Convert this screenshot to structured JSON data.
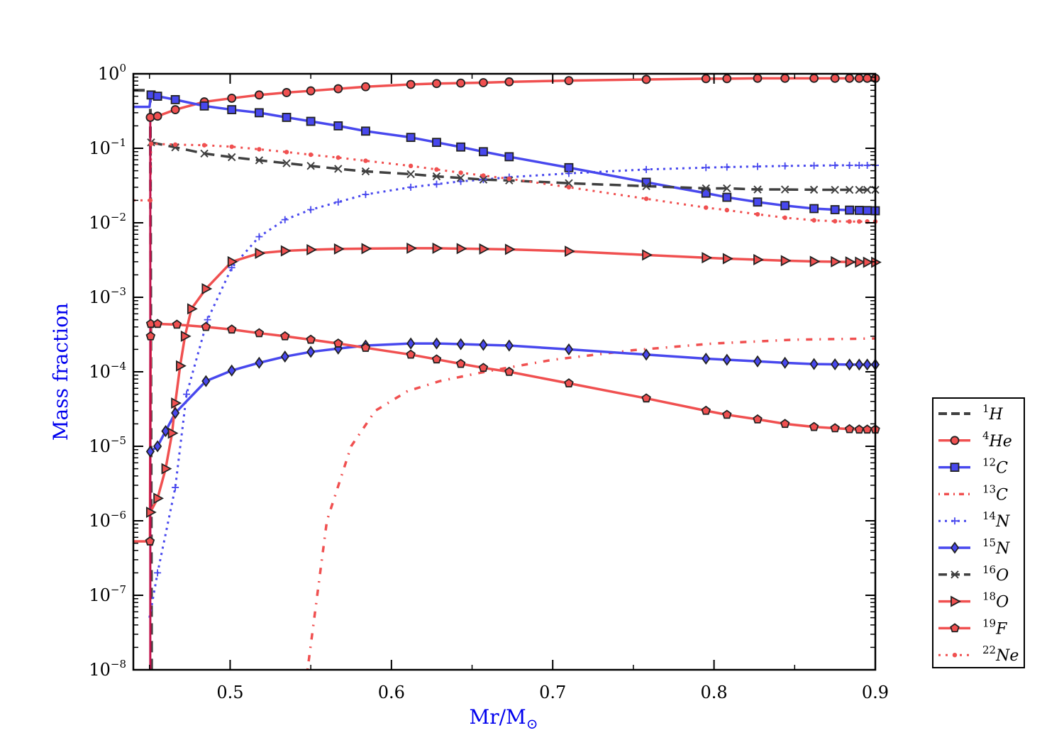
{
  "chart_data": {
    "type": "line",
    "xlabel": "Mr/M",
    "xlabel_sub": "⊙",
    "ylabel": "Mass fraction",
    "xlim": [
      0.44,
      0.9
    ],
    "ylim": [
      1e-08,
      1
    ],
    "yscale": "log",
    "grid": false,
    "legend_position": "right",
    "x_ticks": [
      {
        "v": 0.5,
        "label": "0.5"
      },
      {
        "v": 0.6,
        "label": "0.6"
      },
      {
        "v": 0.7,
        "label": "0.7"
      },
      {
        "v": 0.8,
        "label": "0.8"
      },
      {
        "v": 0.9,
        "label": "0.9"
      }
    ],
    "y_ticks": [
      {
        "exp": 0,
        "base": "10",
        "sup": "0"
      },
      {
        "exp": -1,
        "base": "10",
        "sup": "−1"
      },
      {
        "exp": -2,
        "base": "10",
        "sup": "−2"
      },
      {
        "exp": -3,
        "base": "10",
        "sup": "−3"
      },
      {
        "exp": -4,
        "base": "10",
        "sup": "−4"
      },
      {
        "exp": -5,
        "base": "10",
        "sup": "−5"
      },
      {
        "exp": -6,
        "base": "10",
        "sup": "−6"
      },
      {
        "exp": -7,
        "base": "10",
        "sup": "−7"
      },
      {
        "exp": -8,
        "base": "10",
        "sup": "−8"
      }
    ],
    "series": [
      {
        "id": "h1",
        "mass": "1",
        "elem": "H",
        "color": "#404040",
        "dash": "16,9",
        "width": 4,
        "marker": "none",
        "x": [
          0.44,
          0.449,
          0.4505,
          0.451,
          0.4513
        ],
        "y": [
          0.6,
          0.6,
          0.6,
          1e-05,
          1e-08
        ]
      },
      {
        "id": "he4",
        "mass": "4",
        "elem": "He",
        "color": "#f05050",
        "dash": "",
        "width": 3.5,
        "marker": "circle",
        "x": [
          0.4505,
          0.455,
          0.466,
          0.484,
          0.501,
          0.518,
          0.535,
          0.55,
          0.567,
          0.584,
          0.612,
          0.628,
          0.643,
          0.657,
          0.673,
          0.71,
          0.758,
          0.795,
          0.808,
          0.827,
          0.844,
          0.862,
          0.875,
          0.884,
          0.89,
          0.895,
          0.9
        ],
        "y": [
          0.26,
          0.27,
          0.33,
          0.42,
          0.47,
          0.52,
          0.56,
          0.59,
          0.63,
          0.67,
          0.72,
          0.74,
          0.75,
          0.76,
          0.78,
          0.81,
          0.84,
          0.86,
          0.86,
          0.87,
          0.87,
          0.87,
          0.87,
          0.87,
          0.87,
          0.87,
          0.87
        ]
      },
      {
        "id": "c12",
        "mass": "12",
        "elem": "C",
        "color": "#4848ee",
        "dash": "",
        "width": 3.5,
        "marker": "square",
        "x": [
          0.44,
          0.447,
          0.45,
          0.451,
          0.455,
          0.466,
          0.484,
          0.501,
          0.518,
          0.535,
          0.55,
          0.567,
          0.584,
          0.612,
          0.628,
          0.643,
          0.657,
          0.673,
          0.71,
          0.758,
          0.795,
          0.808,
          0.827,
          0.844,
          0.862,
          0.875,
          0.884,
          0.89,
          0.895,
          0.9
        ],
        "y": [
          0.36,
          0.36,
          0.36,
          0.52,
          0.5,
          0.45,
          0.37,
          0.33,
          0.3,
          0.26,
          0.23,
          0.2,
          0.17,
          0.14,
          0.12,
          0.104,
          0.09,
          0.077,
          0.055,
          0.035,
          0.025,
          0.022,
          0.019,
          0.017,
          0.0155,
          0.015,
          0.0148,
          0.0147,
          0.0146,
          0.0145
        ]
      },
      {
        "id": "c13",
        "mass": "13",
        "elem": "C",
        "color": "#f05050",
        "dash": "2,10,9,10",
        "width": 3.5,
        "marker": "none",
        "x": [
          0.548,
          0.56,
          0.575,
          0.59,
          0.61,
          0.63,
          0.66,
          0.7,
          0.75,
          0.8,
          0.85,
          0.9
        ],
        "y": [
          1e-08,
          1e-06,
          1e-05,
          3e-05,
          5.5e-05,
          7.5e-05,
          0.000102,
          0.000145,
          0.000195,
          0.00024,
          0.00027,
          0.00028
        ]
      },
      {
        "id": "n14",
        "mass": "14",
        "elem": "N",
        "color": "#4848ee",
        "dash": "3,6",
        "width": 3,
        "marker": "plus",
        "x": [
          0.45,
          0.455,
          0.466,
          0.473,
          0.486,
          0.501,
          0.518,
          0.534,
          0.55,
          0.567,
          0.584,
          0.612,
          0.628,
          0.643,
          0.657,
          0.673,
          0.71,
          0.758,
          0.795,
          0.808,
          0.827,
          0.844,
          0.862,
          0.875,
          0.884,
          0.89,
          0.895,
          0.9
        ],
        "y": [
          5e-08,
          2e-07,
          2.8e-06,
          5e-05,
          0.0005,
          0.0025,
          0.0065,
          0.011,
          0.015,
          0.019,
          0.024,
          0.03,
          0.033,
          0.036,
          0.038,
          0.041,
          0.046,
          0.052,
          0.055,
          0.056,
          0.057,
          0.058,
          0.0585,
          0.059,
          0.059,
          0.059,
          0.059,
          0.059
        ]
      },
      {
        "id": "n15",
        "mass": "15",
        "elem": "N",
        "color": "#4848ee",
        "dash": "",
        "width": 3.5,
        "marker": "diamond",
        "x": [
          0.4505,
          0.455,
          0.46,
          0.466,
          0.485,
          0.501,
          0.518,
          0.534,
          0.55,
          0.567,
          0.584,
          0.612,
          0.628,
          0.643,
          0.657,
          0.673,
          0.71,
          0.758,
          0.795,
          0.808,
          0.827,
          0.844,
          0.862,
          0.875,
          0.884,
          0.89,
          0.895,
          0.9
        ],
        "y": [
          8.5e-06,
          1e-05,
          1.6e-05,
          2.8e-05,
          7.5e-05,
          0.000104,
          0.000132,
          0.00016,
          0.000185,
          0.000205,
          0.000225,
          0.00024,
          0.00024,
          0.000235,
          0.00023,
          0.000225,
          0.0002,
          0.00017,
          0.00015,
          0.000145,
          0.000138,
          0.000132,
          0.000127,
          0.000126,
          0.000125,
          0.000125,
          0.000125,
          0.000125
        ]
      },
      {
        "id": "o16",
        "mass": "16",
        "elem": "O",
        "color": "#404040",
        "dash": "16,9",
        "width": 3.5,
        "marker": "x",
        "x": [
          0.451,
          0.466,
          0.484,
          0.501,
          0.518,
          0.535,
          0.55,
          0.567,
          0.584,
          0.612,
          0.628,
          0.643,
          0.657,
          0.673,
          0.71,
          0.758,
          0.795,
          0.808,
          0.827,
          0.844,
          0.862,
          0.875,
          0.884,
          0.89,
          0.895,
          0.9
        ],
        "y": [
          0.12,
          0.103,
          0.085,
          0.076,
          0.069,
          0.063,
          0.058,
          0.053,
          0.049,
          0.045,
          0.042,
          0.04,
          0.038,
          0.037,
          0.034,
          0.031,
          0.029,
          0.029,
          0.028,
          0.028,
          0.0278,
          0.0277,
          0.0277,
          0.0277,
          0.0277,
          0.0277
        ]
      },
      {
        "id": "o18",
        "mass": "18",
        "elem": "O",
        "color": "#f05050",
        "dash": "",
        "width": 3.5,
        "marker": "triangle",
        "x": [
          0.4505,
          0.455,
          0.46,
          0.464,
          0.466,
          0.469,
          0.472,
          0.476,
          0.485,
          0.501,
          0.518,
          0.534,
          0.55,
          0.567,
          0.584,
          0.612,
          0.628,
          0.643,
          0.657,
          0.673,
          0.71,
          0.758,
          0.795,
          0.808,
          0.827,
          0.844,
          0.862,
          0.875,
          0.884,
          0.89,
          0.895,
          0.9
        ],
        "y": [
          1.3e-06,
          2e-06,
          5e-06,
          1.5e-05,
          3.8e-05,
          0.00012,
          0.0003,
          0.0007,
          0.0013,
          0.003,
          0.0039,
          0.0042,
          0.00435,
          0.00445,
          0.0045,
          0.00455,
          0.00455,
          0.0045,
          0.00445,
          0.0044,
          0.00415,
          0.0037,
          0.0034,
          0.0033,
          0.0032,
          0.0031,
          0.00303,
          0.003,
          0.00298,
          0.00296,
          0.00295,
          0.00295
        ]
      },
      {
        "id": "f19",
        "mass": "19",
        "elem": "F",
        "color": "#f05050",
        "dash": "",
        "width": 3.5,
        "marker": "pentagon",
        "x": [
          0.44,
          0.449,
          0.4503,
          0.4507,
          0.4508,
          0.455,
          0.467,
          0.485,
          0.501,
          0.518,
          0.534,
          0.55,
          0.567,
          0.584,
          0.612,
          0.628,
          0.643,
          0.657,
          0.673,
          0.71,
          0.758,
          0.795,
          0.808,
          0.827,
          0.844,
          0.862,
          0.875,
          0.884,
          0.89,
          0.895,
          0.9
        ],
        "y": [
          5.3e-07,
          5.3e-07,
          5.3e-07,
          0.0003,
          0.00044,
          0.00044,
          0.00043,
          0.0004,
          0.00037,
          0.00033,
          0.0003,
          0.00027,
          0.00024,
          0.00021,
          0.00017,
          0.000147,
          0.000128,
          0.000113,
          0.0001,
          7e-05,
          4.4e-05,
          3e-05,
          2.65e-05,
          2.3e-05,
          2e-05,
          1.82e-05,
          1.75e-05,
          1.7e-05,
          1.68e-05,
          1.68e-05,
          1.68e-05
        ]
      },
      {
        "id": "ne22",
        "mass": "22",
        "elem": "Ne",
        "color": "#f05050",
        "dash": "3,7",
        "width": 3,
        "marker": "dot",
        "x": [
          0.44,
          0.447,
          0.4505,
          0.451,
          0.466,
          0.484,
          0.501,
          0.518,
          0.535,
          0.55,
          0.567,
          0.584,
          0.612,
          0.628,
          0.643,
          0.657,
          0.673,
          0.71,
          0.758,
          0.795,
          0.808,
          0.827,
          0.844,
          0.862,
          0.875,
          0.884,
          0.89,
          0.895,
          0.9
        ],
        "y": [
          0.02,
          0.02,
          0.02,
          0.115,
          0.112,
          0.11,
          0.105,
          0.097,
          0.089,
          0.082,
          0.075,
          0.068,
          0.058,
          0.052,
          0.047,
          0.043,
          0.039,
          0.03,
          0.021,
          0.016,
          0.0148,
          0.013,
          0.0117,
          0.0108,
          0.0105,
          0.0104,
          0.0104,
          0.0104,
          0.0104
        ]
      }
    ]
  }
}
